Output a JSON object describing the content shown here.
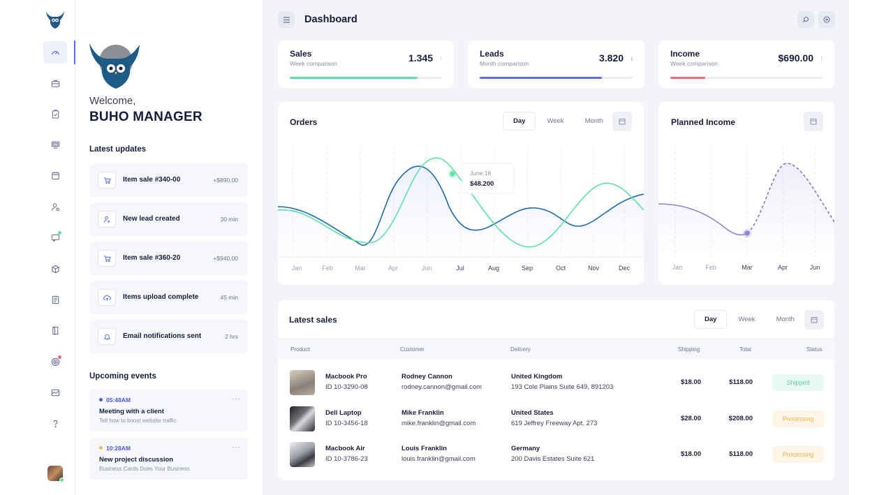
{
  "app": {
    "title": "Dashboard"
  },
  "sidebar": {
    "welcome": "Welcome,",
    "manager": "BUHO MANAGER",
    "updates_title": "Latest updates",
    "updates": [
      {
        "label": "Item sale #340-00",
        "value": "+$890.00",
        "icon": "cart-icon"
      },
      {
        "label": "New lead created",
        "value": "30 min",
        "icon": "user-add-icon"
      },
      {
        "label": "Item sale #360-20",
        "value": "+$940.00",
        "icon": "cart-icon"
      },
      {
        "label": "Items upload complete",
        "value": "45 min",
        "icon": "cloud-upload-icon"
      },
      {
        "label": "Email notifications sent",
        "value": "2 hrs",
        "icon": "bell-icon"
      }
    ],
    "events_title": "Upcoming events",
    "events": [
      {
        "time": "05:48AM",
        "name": "Meeting with a client",
        "desc": "Tell how to boost website traffic",
        "dot": "#4b5ad8"
      },
      {
        "time": "10:28AM",
        "name": "New project discussion",
        "desc": "Business Cards Does Your Business",
        "dot": "#f5b35b"
      }
    ],
    "more": "···"
  },
  "kpis": [
    {
      "label": "Sales",
      "sub": "Week comparison",
      "value": "1.345",
      "arrow": "↑",
      "arrow_color": "#5fe0a4",
      "bar_color": "#5fe0a4",
      "progress": 0.84
    },
    {
      "label": "Leads",
      "sub": "Month comparison",
      "value": "3.820",
      "arrow": "↓",
      "arrow_color": "#5a6ee8",
      "bar_color": "#5a6ee8",
      "progress": 0.8
    },
    {
      "label": "Income",
      "sub": "Week comparison",
      "value": "$690.00",
      "arrow": "↑",
      "arrow_color": "#5fe0a4",
      "bar_color": "#f06b7a",
      "progress": 0.23
    }
  ],
  "orders": {
    "title": "Orders",
    "tabs": [
      "Day",
      "Week",
      "Month"
    ],
    "active_tab": "Day",
    "tooltip_date": "June 16",
    "tooltip_value": "$48.200",
    "months": [
      "Jan",
      "Feb",
      "Mar",
      "Apr",
      "Jun",
      "Jul",
      "Aug",
      "Sep",
      "Oct",
      "Nov",
      "Dec"
    ]
  },
  "planned": {
    "title": "Planned Income",
    "months": [
      "Jan",
      "Feb",
      "Mar",
      "Apr",
      "Jun"
    ]
  },
  "sales": {
    "title": "Latest sales",
    "tabs": [
      "Day",
      "Week",
      "Month"
    ],
    "headers": {
      "product": "Product",
      "customer": "Customer",
      "delivery": "Delivery",
      "shipping": "Shipping",
      "total": "Total",
      "status": "Status"
    },
    "rows": [
      {
        "product": "Macbook Pro",
        "id": "ID 10-3290-08",
        "customer": "Rodney Cannon",
        "email": "rodney.cannon@gmail.com",
        "country": "United Kingdom",
        "address": "193 Cole Plains Suite 649, 891203",
        "shipping": "$18.00",
        "total": "$118.00",
        "status": "Shipped",
        "status_bg": "#e8faf1",
        "status_fg": "#5fd39a"
      },
      {
        "product": "Dell Laptop",
        "id": "ID 10-3456-18",
        "customer": "Mike Franklin",
        "email": "mike.franklin@gmail.com",
        "country": "United States",
        "address": "619 Jeffrey Freeway Apt. 273",
        "shipping": "$28.00",
        "total": "$208.00",
        "status": "Processing",
        "status_bg": "#fdf5e6",
        "status_fg": "#f2b24c"
      },
      {
        "product": "Macbook Air",
        "id": "ID 10-3786-23",
        "customer": "Louis Franklin",
        "email": "louis.franklin@gmail.com",
        "country": "Germany",
        "address": "200 Davis Estates Suite 621",
        "shipping": "$18.00",
        "total": "$118.00",
        "status": "Processing",
        "status_bg": "#fdf5e6",
        "status_fg": "#f2b24c"
      }
    ]
  },
  "colors": {
    "accent": "#5a6ee8",
    "green": "#5fe0a4",
    "navy": "#1f6aa8"
  }
}
